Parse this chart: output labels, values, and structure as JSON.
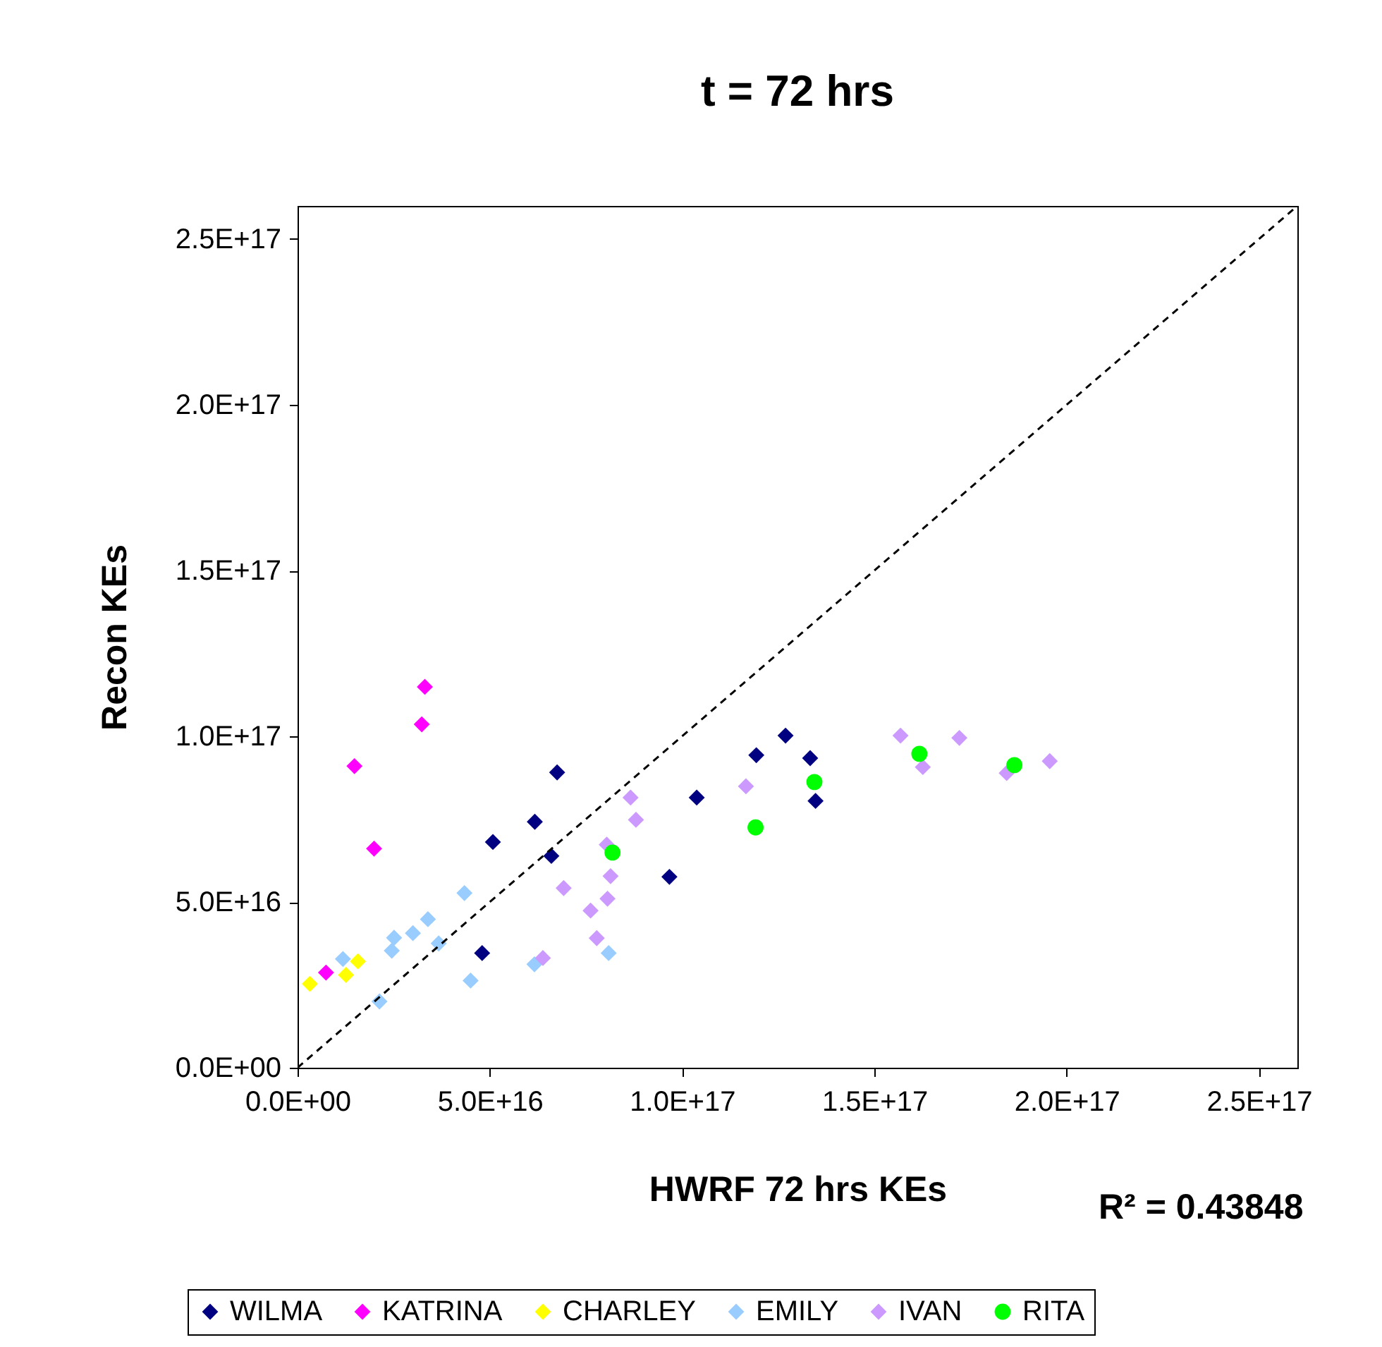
{
  "chart_data": {
    "type": "scatter",
    "title": "t = 72 hrs",
    "xlabel": "HWRF 72 hrs KEs",
    "ylabel": "Recon KEs",
    "annotations": [
      "R² = 0.43848"
    ],
    "xlim": [
      0,
      2.6e+17
    ],
    "ylim": [
      0,
      2.6e+17
    ],
    "xticks": [
      {
        "value": 0,
        "label": "0.0E+00"
      },
      {
        "value": 5e+16,
        "label": "5.0E+16"
      },
      {
        "value": 1e+17,
        "label": "1.0E+17"
      },
      {
        "value": 1.5e+17,
        "label": "1.5E+17"
      },
      {
        "value": 2e+17,
        "label": "2.0E+17"
      },
      {
        "value": 2.5e+17,
        "label": "2.5E+17"
      }
    ],
    "yticks": [
      {
        "value": 0,
        "label": "0.0E+00"
      },
      {
        "value": 5e+16,
        "label": "5.0E+16"
      },
      {
        "value": 1e+17,
        "label": "1.0E+17"
      },
      {
        "value": 1.5e+17,
        "label": "1.5E+17"
      },
      {
        "value": 2e+17,
        "label": "2.0E+17"
      },
      {
        "value": 2.5e+17,
        "label": "2.5E+17"
      }
    ],
    "grid": false,
    "legend": "bottom",
    "series": [
      {
        "name": "WILMA",
        "color": "#000080",
        "marker": "diamond",
        "x": [
          4.8e+16,
          5.08e+16,
          6.17e+16,
          6.6e+16,
          6.75e+16,
          9.67e+16,
          1.038e+17,
          1.193e+17,
          1.269e+17,
          1.333e+17,
          1.347e+17
        ],
        "values": [
          3.46e+16,
          6.81e+16,
          7.42e+16,
          6.39e+16,
          8.91e+16,
          5.76e+16,
          8.15e+16,
          9.43e+16,
          1.002e+17,
          9.34e+16,
          8.05e+16
        ]
      },
      {
        "name": "KATRINA",
        "color": "#ff00ff",
        "marker": "diamond",
        "x": [
          3.31e+16,
          3.23e+16,
          1.48e+16,
          1.99e+16,
          7400000000000000.0
        ],
        "values": [
          1.149e+17,
          1.036e+17,
          9.1e+16,
          6.61e+16,
          2.87e+16
        ]
      },
      {
        "name": "CHARLEY",
        "color": "#ffff00",
        "marker": "diamond",
        "x": [
          3200000000000000.0,
          1.26e+16,
          1.57e+16
        ],
        "values": [
          2.53e+16,
          2.8e+16,
          3.21e+16
        ]
      },
      {
        "name": "EMILY",
        "color": "#99ccff",
        "marker": "diamond",
        "x": [
          1.18e+16,
          2.13e+16,
          2.45e+16,
          2.51e+16,
          3e+16,
          3.39e+16,
          3.67e+16,
          4.34e+16,
          4.5e+16,
          6.16e+16,
          8.09e+16
        ],
        "values": [
          3.28e+16,
          2e+16,
          3.53e+16,
          3.92e+16,
          4.06e+16,
          4.48e+16,
          3.75e+16,
          5.27e+16,
          2.63e+16,
          3.12e+16,
          3.46e+16
        ]
      },
      {
        "name": "IVAN",
        "color": "#cc99ff",
        "marker": "diamond",
        "x": [
          6.38e+16,
          6.92e+16,
          7.62e+16,
          7.78e+16,
          8.06e+16,
          8.14e+16,
          8.04e+16,
          8.66e+16,
          8.8e+16,
          1.166e+17,
          1.568e+17,
          1.721e+17,
          1.626e+17,
          1.844e+17,
          1.956e+17
        ],
        "values": [
          3.31e+16,
          5.42e+16,
          4.74e+16,
          3.91e+16,
          5.1e+16,
          5.78e+16,
          6.73e+16,
          8.15e+16,
          7.48e+16,
          8.49e+16,
          1.002e+17,
          9.95e+16,
          9.07e+16,
          8.89e+16,
          9.25e+16
        ]
      },
      {
        "name": "RITA",
        "color": "#00ff00",
        "marker": "circle",
        "x": [
          8.19e+16,
          1.191e+17,
          1.344e+17,
          1.617e+17,
          1.864e+17
        ],
        "values": [
          6.49e+16,
          7.25e+16,
          8.62e+16,
          9.47e+16,
          9.13e+16
        ]
      },
      {
        "type": "line",
        "color": "#000000",
        "line_style": "dashed",
        "x": [
          0,
          2.6e+17
        ],
        "values": [
          0,
          2.6e+17
        ]
      }
    ]
  }
}
